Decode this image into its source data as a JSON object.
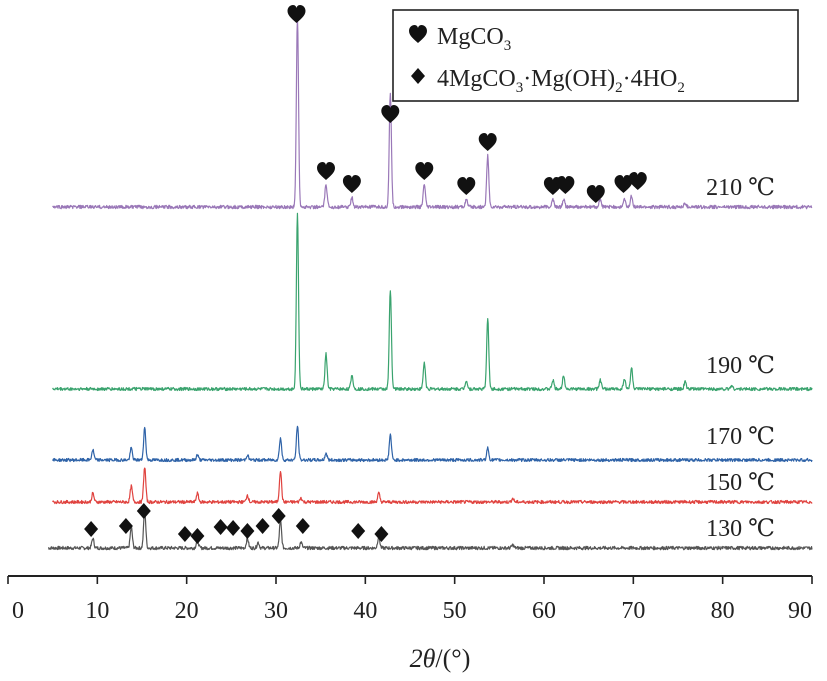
{
  "chart_data": {
    "type": "line",
    "xlabel": "2θ/(°)",
    "xlabel_parts": {
      "var": "2θ",
      "unit": "/(°)"
    },
    "xlim": [
      0,
      90
    ],
    "x_ticks": [
      0,
      10,
      20,
      30,
      40,
      50,
      60,
      70,
      80,
      90
    ],
    "grid": false,
    "legend_position": "top-right",
    "legend": [
      {
        "marker": "heart",
        "label": "MgCO3",
        "label_parts": [
          "MgCO",
          "3"
        ]
      },
      {
        "marker": "diamond",
        "label": "4MgCO3·Mg(OH)2·4HO2",
        "label_parts": [
          "4MgCO",
          "3",
          "·Mg(OH)",
          "2",
          "·4HO",
          "2"
        ]
      }
    ],
    "series": [
      {
        "name": "130 ℃",
        "color": "#555555",
        "peaks": [
          [
            9.5,
            0.25
          ],
          [
            13.8,
            0.55
          ],
          [
            15.3,
            1.0
          ],
          [
            21.2,
            0.22
          ],
          [
            26.8,
            0.25
          ],
          [
            28.0,
            0.15
          ],
          [
            30.5,
            0.72
          ],
          [
            32.8,
            0.15
          ],
          [
            41.5,
            0.3
          ],
          [
            56.5,
            0.08
          ]
        ],
        "markers": [
          {
            "type": "diamond",
            "x": 9.3
          },
          {
            "type": "diamond",
            "x": 13.2
          },
          {
            "type": "diamond",
            "x": 15.2
          },
          {
            "type": "diamond",
            "x": 19.8
          },
          {
            "type": "diamond",
            "x": 21.2
          },
          {
            "type": "diamond",
            "x": 23.8
          },
          {
            "type": "diamond",
            "x": 25.2
          },
          {
            "type": "diamond",
            "x": 26.8
          },
          {
            "type": "diamond",
            "x": 28.5
          },
          {
            "type": "diamond",
            "x": 30.3
          },
          {
            "type": "diamond",
            "x": 33.0
          },
          {
            "type": "diamond",
            "x": 39.2
          },
          {
            "type": "diamond",
            "x": 41.8
          }
        ]
      },
      {
        "name": "150 ℃",
        "color": "#e0433f",
        "peaks": [
          [
            9.5,
            0.25
          ],
          [
            13.8,
            0.45
          ],
          [
            15.3,
            1.0
          ],
          [
            21.2,
            0.25
          ],
          [
            26.8,
            0.2
          ],
          [
            30.5,
            0.9
          ],
          [
            32.8,
            0.12
          ],
          [
            41.5,
            0.25
          ],
          [
            56.5,
            0.1
          ]
        ],
        "markers": []
      },
      {
        "name": "170 ℃",
        "color": "#2f63a8",
        "peaks": [
          [
            9.5,
            0.3
          ],
          [
            13.8,
            0.35
          ],
          [
            15.3,
            0.95
          ],
          [
            21.2,
            0.15
          ],
          [
            26.8,
            0.15
          ],
          [
            30.5,
            0.65
          ],
          [
            32.4,
            1.0
          ],
          [
            35.6,
            0.2
          ],
          [
            42.8,
            0.75
          ],
          [
            53.7,
            0.35
          ]
        ],
        "markers": []
      },
      {
        "name": "190 ℃",
        "color": "#3aa36e",
        "peaks": [
          [
            32.4,
            1.0
          ],
          [
            35.6,
            0.2
          ],
          [
            38.5,
            0.08
          ],
          [
            42.8,
            0.57
          ],
          [
            46.6,
            0.15
          ],
          [
            51.3,
            0.05
          ],
          [
            53.7,
            0.4
          ],
          [
            61.0,
            0.05
          ],
          [
            62.2,
            0.08
          ],
          [
            66.3,
            0.05
          ],
          [
            69.0,
            0.06
          ],
          [
            69.8,
            0.12
          ],
          [
            75.8,
            0.04
          ],
          [
            81.0,
            0.02
          ]
        ],
        "markers": []
      },
      {
        "name": "210 ℃",
        "color": "#9a78b8",
        "peaks": [
          [
            32.4,
            1.0
          ],
          [
            35.6,
            0.12
          ],
          [
            38.5,
            0.05
          ],
          [
            42.8,
            0.6
          ],
          [
            46.6,
            0.12
          ],
          [
            51.3,
            0.04
          ],
          [
            53.7,
            0.27
          ],
          [
            61.0,
            0.04
          ],
          [
            62.2,
            0.04
          ],
          [
            66.3,
            0.04
          ],
          [
            69.0,
            0.04
          ],
          [
            69.8,
            0.06
          ],
          [
            75.8,
            0.02
          ]
        ],
        "markers": [
          {
            "type": "heart",
            "x": 32.3
          },
          {
            "type": "heart",
            "x": 35.6
          },
          {
            "type": "heart",
            "x": 38.5
          },
          {
            "type": "heart",
            "x": 42.8
          },
          {
            "type": "heart",
            "x": 46.6
          },
          {
            "type": "heart",
            "x": 51.3
          },
          {
            "type": "heart",
            "x": 53.7
          },
          {
            "type": "heart",
            "x": 61.0
          },
          {
            "type": "heart",
            "x": 62.4
          },
          {
            "type": "heart",
            "x": 65.8
          },
          {
            "type": "heart",
            "x": 68.9
          },
          {
            "type": "heart",
            "x": 70.5
          }
        ]
      }
    ]
  }
}
